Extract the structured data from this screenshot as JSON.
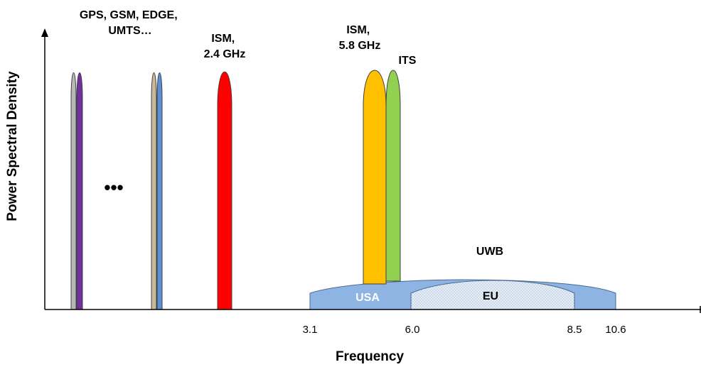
{
  "axes": {
    "x_title": "Frequency",
    "y_title": "Power Spectral Density",
    "ticks": [
      "3.1",
      "6.0",
      "8.5",
      "10.6"
    ]
  },
  "labels": {
    "narrowband_group": [
      "GPS, GSM, EDGE,",
      "UMTS…"
    ],
    "ism24": [
      "ISM,",
      "2.4 GHz"
    ],
    "ism58": [
      "ISM,",
      "5.8 GHz"
    ],
    "its": "ITS",
    "uwb": "UWB",
    "usa": "USA",
    "eu": "EU",
    "ellipsis": "•••"
  },
  "colors": {
    "gray_band": "#b8b8b8",
    "purple_band": "#7030a0",
    "tan_band": "#c9b99a",
    "blue_band": "#5b8fd6",
    "ism24": "#ff0000",
    "ism58": "#ffc000",
    "its": "#92d050",
    "usa": "#8eb4e3",
    "eu": "#dce6f2"
  }
}
